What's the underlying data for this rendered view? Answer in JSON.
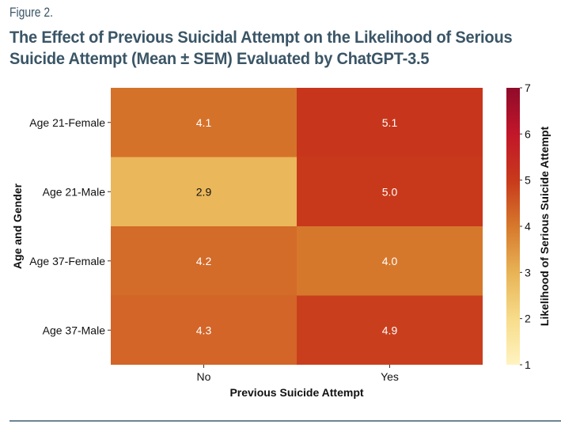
{
  "figure_label": "Figure 2.",
  "title_line1": "The Effect of Previous Suicidal Attempt on the Likelihood of Serious",
  "title_line2": "Suicide Attempt (Mean ± SEM) Evaluated by ChatGPT-3.5",
  "chart_data": {
    "type": "heatmap",
    "title": "The Effect of Previous Suicidal Attempt on the Likelihood of Serious Suicide Attempt (Mean ± SEM) Evaluated by ChatGPT-3.5",
    "xlabel": "Previous Suicide Attempt",
    "ylabel": "Age and Gender",
    "x_categories": [
      "No",
      "Yes"
    ],
    "y_categories": [
      "Age 21-Female",
      "Age 21-Male",
      "Age 37-Female",
      "Age 37-Male"
    ],
    "values": [
      [
        4.1,
        5.1
      ],
      [
        2.9,
        5.0
      ],
      [
        4.2,
        4.0
      ],
      [
        4.3,
        4.9
      ]
    ],
    "value_labels": [
      [
        "4.1",
        "5.1"
      ],
      [
        "2.9",
        "5.0"
      ],
      [
        "4.2",
        "4.0"
      ],
      [
        "4.3",
        "4.9"
      ]
    ],
    "colorbar": {
      "label": "Likelihood of Serious Suicide Attempt",
      "range": [
        1,
        7
      ],
      "ticks": [
        "1",
        "2",
        "3",
        "4",
        "5",
        "6",
        "7"
      ],
      "colormap": "YlOrRd",
      "stops": [
        "#fff3c0",
        "#f7dc8a",
        "#e8b355",
        "#d6782c",
        "#c8391b",
        "#c2162a",
        "#8f0b2a"
      ]
    },
    "dark_text_color": "#111111",
    "light_text_color": "#ffffff"
  }
}
